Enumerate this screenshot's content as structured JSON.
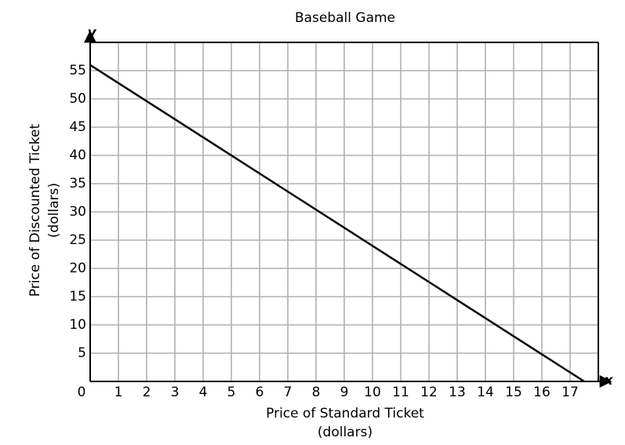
{
  "chart_data": {
    "type": "line",
    "title": "Baseball Game",
    "xlabel": [
      "Price of Standard Ticket",
      "(dollars)"
    ],
    "ylabel": [
      "Price of Discounted Ticket",
      "(dollars)"
    ],
    "x_axis_name": "x",
    "y_axis_name": "y",
    "x": [
      0,
      17.5
    ],
    "series": [
      {
        "values": [
          56,
          0
        ],
        "color": "#000000"
      }
    ],
    "xlim": [
      0,
      18
    ],
    "ylim": [
      0,
      60
    ],
    "xticks": [
      0,
      1,
      2,
      3,
      4,
      5,
      6,
      7,
      8,
      9,
      10,
      11,
      12,
      13,
      14,
      15,
      16,
      17
    ],
    "yticks": [
      5,
      10,
      15,
      20,
      25,
      30,
      35,
      40,
      45,
      50,
      55
    ],
    "xgrid_step": 1,
    "ygrid_step": 5,
    "grid": true
  }
}
